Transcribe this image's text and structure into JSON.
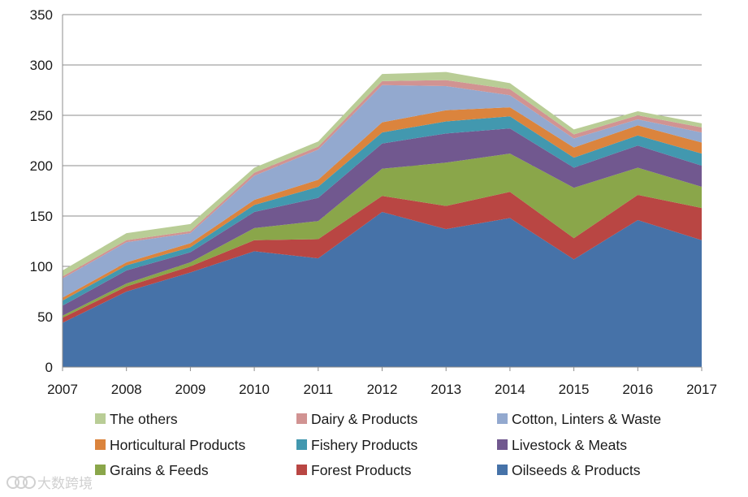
{
  "chart_data": {
    "type": "area",
    "stacked": true,
    "title": "",
    "xlabel": "",
    "ylabel": "",
    "ylim": [
      0,
      350
    ],
    "yticks": [
      0,
      50,
      100,
      150,
      200,
      250,
      300,
      350
    ],
    "x": [
      "2007",
      "2008",
      "2009",
      "2010",
      "2011",
      "2012",
      "2013",
      "2014",
      "2015",
      "2016",
      "2017"
    ],
    "grid": true,
    "legend_position": "bottom",
    "series": [
      {
        "name": "Oilseeds & Products",
        "color": "#4672A8",
        "values": [
          44,
          75,
          94,
          115,
          108,
          154,
          137,
          148,
          107,
          146,
          126
        ]
      },
      {
        "name": "Forest Products",
        "color": "#B94643",
        "values": [
          5,
          5,
          6,
          11,
          19,
          16,
          23,
          26,
          21,
          25,
          32
        ]
      },
      {
        "name": "Grains & Feeds",
        "color": "#8AA64A",
        "values": [
          2,
          3,
          4,
          12,
          18,
          27,
          43,
          38,
          50,
          27,
          21
        ]
      },
      {
        "name": "Livestock & Meats",
        "color": "#71588F",
        "values": [
          10,
          13,
          10,
          16,
          23,
          25,
          29,
          25,
          20,
          22,
          21
        ]
      },
      {
        "name": "Fishery Products",
        "color": "#4298AF",
        "values": [
          5,
          5,
          5,
          7,
          11,
          11,
          12,
          12,
          10,
          10,
          12
        ]
      },
      {
        "name": "Horticultural Products",
        "color": "#DB843D",
        "values": [
          3,
          3,
          4,
          5,
          7,
          10,
          11,
          9,
          10,
          10,
          11
        ]
      },
      {
        "name": "Cotton, Linters & Waste",
        "color": "#93A9CF",
        "values": [
          19,
          20,
          10,
          24,
          30,
          37,
          24,
          12,
          9,
          6,
          10
        ]
      },
      {
        "name": "Dairy & Products",
        "color": "#D19392",
        "values": [
          2,
          2,
          2,
          3,
          3,
          4,
          6,
          6,
          4,
          4,
          5
        ]
      },
      {
        "name": "The others",
        "color": "#B9CD96",
        "values": [
          6,
          7,
          7,
          5,
          5,
          7,
          8,
          6,
          5,
          4,
          4
        ]
      }
    ],
    "legend_order": [
      "The others",
      "Dairy & Products",
      "Cotton, Linters & Waste",
      "Horticultural Products",
      "Fishery Products",
      "Livestock & Meats",
      "Grains & Feeds",
      "Forest Products",
      "Oilseeds & Products"
    ]
  },
  "watermark": {
    "text": "大数跨境"
  }
}
